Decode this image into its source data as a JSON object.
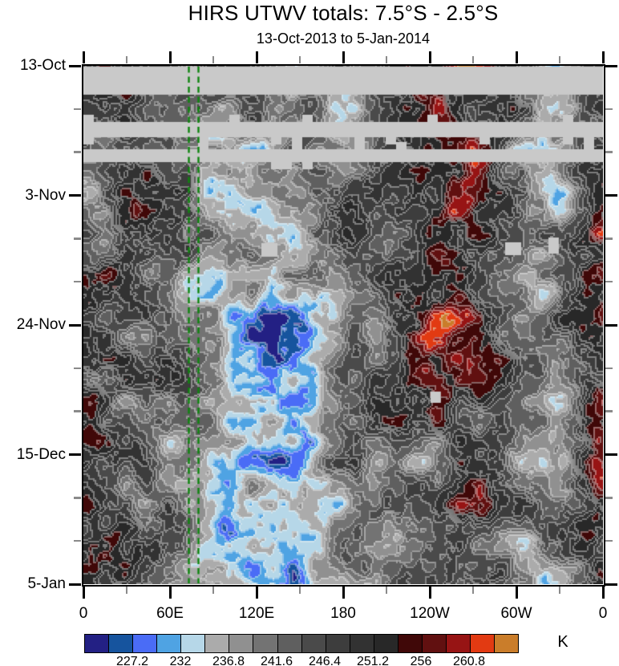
{
  "title": "HIRS UTWV totals: 7.5°S - 2.5°S",
  "subtitle": "13-Oct-2013 to 5-Jan-2014",
  "chart_data": {
    "type": "heatmap",
    "variant": "hovmoller-longitude-vs-time",
    "title": "HIRS UTWV totals: 7.5°S - 2.5°S",
    "subtitle": "13-Oct-2013 to 5-Jan-2014",
    "x_axis": {
      "ticks": [
        "0",
        "60E",
        "120E",
        "180",
        "120W",
        "60W",
        "0"
      ],
      "minor_ticks_between_majors": 1
    },
    "y_axis": {
      "ticks": [
        "13-Oct",
        "3-Nov",
        "24-Nov",
        "15-Dec",
        "5-Jan"
      ],
      "minor_ticks_between_majors": 2,
      "direction": "time-increases-downward"
    },
    "colorbar": {
      "units": "K",
      "tick_labels": [
        "227.2",
        "232",
        "236.8",
        "241.6",
        "246.4",
        "251.2",
        "256",
        "260.8"
      ],
      "label_every_n_cells": 2,
      "cell_step_K": 2.4,
      "cell_colors": [
        "#232084",
        "#16549e",
        "#4a6cf6",
        "#4fa3e3",
        "#b6d7e8",
        "#ababab",
        "#909090",
        "#737373",
        "#5f5f5f",
        "#4a4a4a",
        "#3d3d3d",
        "#323232",
        "#282828",
        "#400808",
        "#611010",
        "#971414",
        "#e23a12",
        "#ca7d2a"
      ]
    },
    "reference_lines": {
      "style": "dashed",
      "color": "#0e850e",
      "x_fracs": [
        0.2022,
        0.2207
      ]
    },
    "missing_data": {
      "color": "#c9c9c9",
      "bands_y_frac": [
        [
          0.0015,
          0.0557
        ],
        [
          0.1083,
          0.1378
        ],
        [
          0.161,
          0.1858
        ]
      ],
      "blocks": [
        {
          "x": 0.3426,
          "y": 0.342,
          "w": 0.031,
          "h": 0.0263
        },
        {
          "x": 0.8117,
          "y": 0.3405,
          "w": 0.031,
          "h": 0.0248
        },
        {
          "x": 0.895,
          "y": 0.3313,
          "w": 0.02,
          "h": 0.031
        },
        {
          "x": 0.668,
          "y": 0.6285,
          "w": 0.02,
          "h": 0.0217
        }
      ]
    }
  }
}
